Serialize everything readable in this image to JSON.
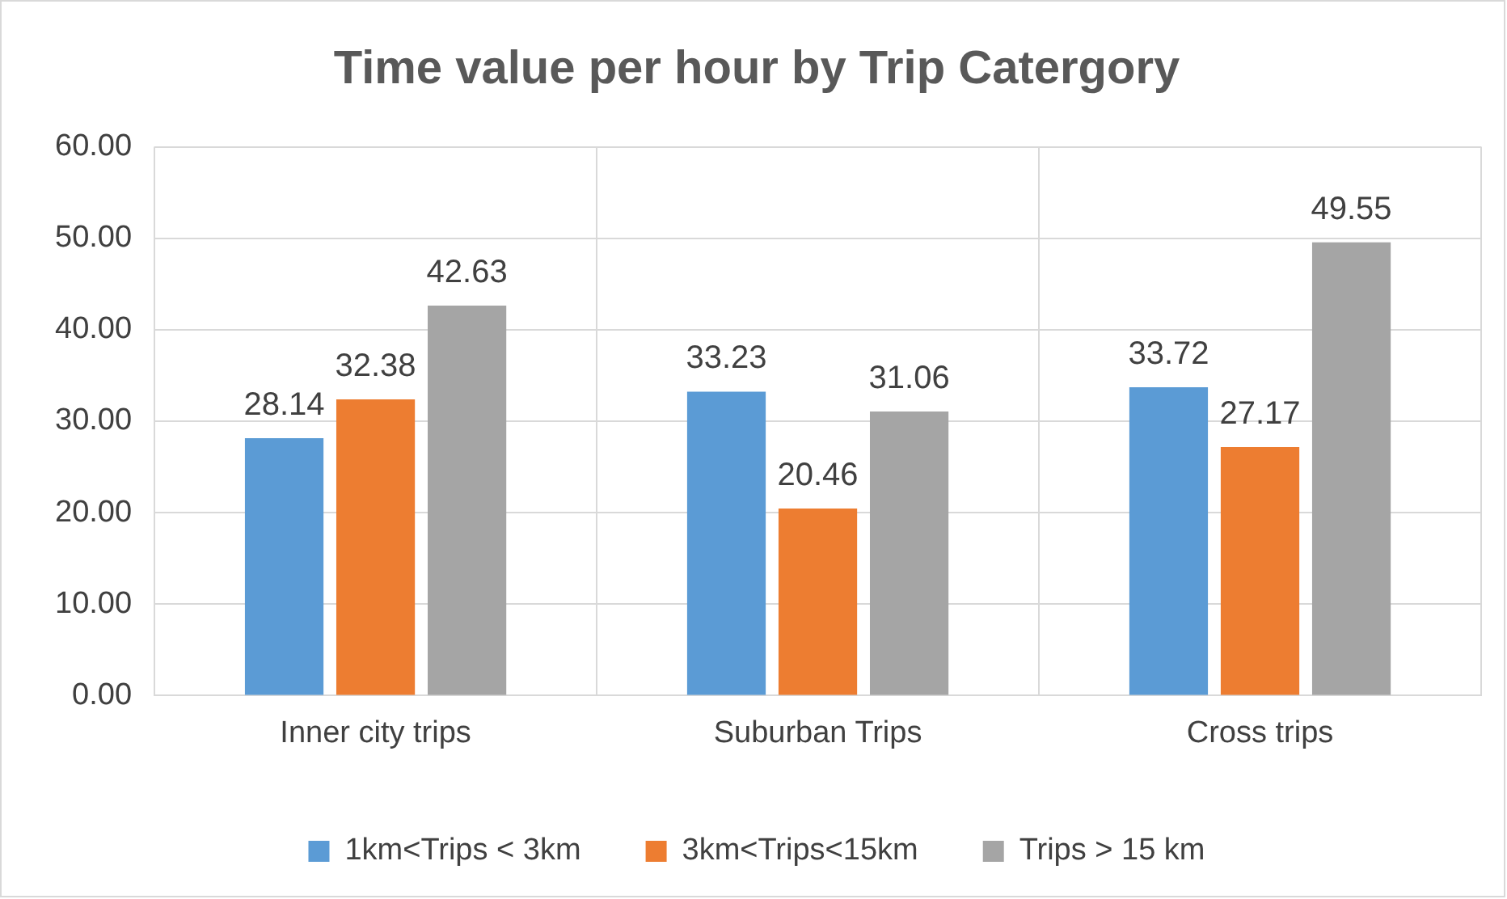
{
  "chart_data": {
    "type": "bar",
    "title": "Time value per hour by Trip Catergory",
    "categories": [
      "Inner city trips",
      "Suburban Trips",
      "Cross trips"
    ],
    "series": [
      {
        "name": "1km<Trips < 3km",
        "color": "#5b9bd5",
        "values": [
          28.14,
          33.23,
          33.72
        ]
      },
      {
        "name": "3km<Trips<15km",
        "color": "#ed7d31",
        "values": [
          32.38,
          20.46,
          27.17
        ]
      },
      {
        "name": "Trips > 15 km",
        "color": "#a5a5a5",
        "values": [
          42.63,
          31.06,
          49.55
        ]
      }
    ],
    "ylim": [
      0,
      60
    ],
    "yticks": [
      {
        "value": 0,
        "label": "0.00"
      },
      {
        "value": 10,
        "label": "10.00"
      },
      {
        "value": 20,
        "label": "20.00"
      },
      {
        "value": 30,
        "label": "30.00"
      },
      {
        "value": 40,
        "label": "40.00"
      },
      {
        "value": 50,
        "label": "50.00"
      },
      {
        "value": 60,
        "label": "60.00"
      }
    ],
    "grid": true,
    "legend": "bottom",
    "data_labels": true
  }
}
